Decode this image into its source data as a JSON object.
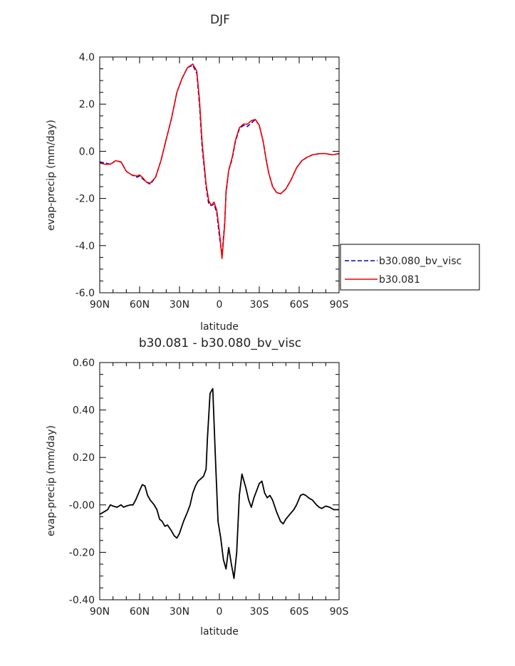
{
  "chart_data": [
    {
      "type": "line",
      "title": "DJF",
      "xlabel": "latitude",
      "ylabel": "evap-precip (mm/day)",
      "xlim": [
        90,
        -90
      ],
      "ylim": [
        -6.0,
        4.0
      ],
      "yticks": [
        "-6.0",
        "-4.0",
        "-2.0",
        "0.0",
        "2.0",
        "4.0"
      ],
      "xticks": [
        "90N",
        "60N",
        "30N",
        "0",
        "30S",
        "60S",
        "90S"
      ],
      "legend_position": "right",
      "grid": false,
      "series": [
        {
          "name": "b30.080_bv_visc",
          "color": "#0000cc",
          "style": "dashed",
          "x": [
            90,
            86,
            82,
            78,
            74,
            70,
            66,
            62,
            60,
            58,
            55,
            52,
            48,
            44,
            40,
            36,
            32,
            28,
            24,
            20,
            17,
            15,
            13,
            10,
            8,
            6,
            4,
            2,
            0,
            -2,
            -4,
            -5,
            -7,
            -9,
            -10,
            -12,
            -15,
            -18,
            -21,
            -24,
            -27,
            -30,
            -33,
            -35,
            -37,
            -40,
            -43,
            -46,
            -50,
            -54,
            -58,
            -62,
            -66,
            -70,
            -75,
            -80,
            -85,
            -90
          ],
          "values": [
            -0.45,
            -0.5,
            -0.55,
            -0.4,
            -0.45,
            -0.85,
            -1.0,
            -1.1,
            -1.05,
            -1.15,
            -1.3,
            -1.4,
            -1.1,
            -0.4,
            0.5,
            1.4,
            2.5,
            3.1,
            3.55,
            3.65,
            3.3,
            2.0,
            0.2,
            -1.5,
            -2.25,
            -2.3,
            -2.25,
            -2.6,
            -3.6,
            -4.4,
            -3.0,
            -1.8,
            -0.8,
            -0.45,
            -0.2,
            0.4,
            0.95,
            1.1,
            1.05,
            1.2,
            1.35,
            1.1,
            0.4,
            -0.3,
            -0.9,
            -1.5,
            -1.75,
            -1.8,
            -1.6,
            -1.2,
            -0.7,
            -0.4,
            -0.25,
            -0.15,
            -0.1,
            -0.1,
            -0.15,
            -0.1
          ]
        },
        {
          "name": "b30.081",
          "color": "#ee0000",
          "style": "solid",
          "x": [
            90,
            86,
            82,
            78,
            74,
            70,
            66,
            62,
            60,
            58,
            55,
            52,
            48,
            44,
            40,
            36,
            32,
            28,
            24,
            20,
            17,
            15,
            13,
            10,
            8,
            6,
            4,
            2,
            0,
            -2,
            -4,
            -5,
            -7,
            -9,
            -10,
            -12,
            -15,
            -18,
            -21,
            -24,
            -27,
            -30,
            -33,
            -35,
            -37,
            -40,
            -43,
            -46,
            -50,
            -54,
            -58,
            -62,
            -66,
            -70,
            -75,
            -80,
            -85,
            -90
          ],
          "values": [
            -0.5,
            -0.55,
            -0.55,
            -0.4,
            -0.45,
            -0.85,
            -1.0,
            -1.05,
            -1.0,
            -1.1,
            -1.3,
            -1.35,
            -1.1,
            -0.4,
            0.5,
            1.4,
            2.5,
            3.1,
            3.55,
            3.7,
            3.4,
            2.2,
            0.4,
            -1.4,
            -2.1,
            -2.3,
            -2.15,
            -2.5,
            -3.4,
            -4.55,
            -3.1,
            -1.7,
            -0.8,
            -0.4,
            -0.15,
            0.45,
            1.0,
            1.15,
            1.15,
            1.3,
            1.35,
            1.1,
            0.4,
            -0.3,
            -0.9,
            -1.5,
            -1.75,
            -1.8,
            -1.6,
            -1.2,
            -0.7,
            -0.4,
            -0.25,
            -0.15,
            -0.1,
            -0.1,
            -0.15,
            -0.1
          ]
        }
      ]
    },
    {
      "type": "line",
      "title": "b30.081 - b30.080_bv_visc",
      "xlabel": "latitude",
      "ylabel": "evap-precip (mm/day)",
      "xlim": [
        90,
        -90
      ],
      "ylim": [
        -0.4,
        0.6
      ],
      "yticks": [
        "-0.40",
        "-0.20",
        "-0.00",
        "0.20",
        "0.40",
        "0.60"
      ],
      "xticks": [
        "90N",
        "60N",
        "30N",
        "0",
        "30S",
        "60S",
        "90S"
      ],
      "grid": false,
      "series": [
        {
          "color": "#000000",
          "style": "solid",
          "x": [
            90,
            87,
            84,
            82,
            80,
            77,
            74,
            72,
            70,
            67,
            65,
            63,
            60,
            58,
            56,
            54,
            52,
            49,
            47,
            45,
            43,
            41,
            39,
            36,
            34,
            32,
            30,
            27,
            24,
            22,
            20,
            18,
            16,
            14,
            12,
            10,
            9,
            7,
            5,
            3,
            1,
            -1,
            -3,
            -5,
            -7,
            -9,
            -11,
            -13,
            -15,
            -17,
            -20,
            -22,
            -24,
            -26,
            -28,
            -30,
            -32,
            -34,
            -36,
            -38,
            -40,
            -43,
            -46,
            -48,
            -50,
            -53,
            -56,
            -58,
            -61,
            -63,
            -65,
            -67,
            -70,
            -73,
            -75,
            -77,
            -80,
            -83,
            -86,
            -90
          ],
          "values": [
            -0.04,
            -0.03,
            -0.02,
            0.0,
            -0.005,
            -0.01,
            0.0,
            -0.01,
            -0.005,
            0.0,
            0.0,
            0.02,
            0.06,
            0.085,
            0.08,
            0.04,
            0.02,
            0.0,
            -0.02,
            -0.06,
            -0.07,
            -0.09,
            -0.085,
            -0.11,
            -0.13,
            -0.14,
            -0.12,
            -0.07,
            -0.03,
            0.0,
            0.05,
            0.08,
            0.1,
            0.11,
            0.12,
            0.15,
            0.28,
            0.47,
            0.49,
            0.2,
            -0.07,
            -0.14,
            -0.23,
            -0.27,
            -0.18,
            -0.25,
            -0.31,
            -0.2,
            0.04,
            0.13,
            0.07,
            0.02,
            -0.01,
            0.03,
            0.06,
            0.09,
            0.1,
            0.05,
            0.03,
            0.04,
            0.02,
            -0.03,
            -0.07,
            -0.08,
            -0.06,
            -0.04,
            -0.02,
            0.0,
            0.04,
            0.045,
            0.04,
            0.03,
            0.02,
            0.0,
            -0.01,
            -0.015,
            -0.005,
            -0.01,
            -0.02,
            -0.02
          ]
        }
      ]
    }
  ]
}
